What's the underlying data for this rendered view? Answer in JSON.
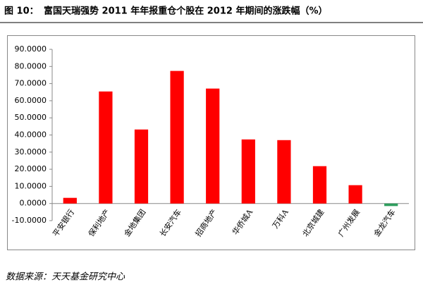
{
  "chart_data": {
    "type": "bar",
    "figure_label": "图 10：",
    "title": "富国天瑞强势 2011 年年报重仓个股在 2012 年期间的涨跌幅（%）",
    "source": "数据来源：天天基金研究中心",
    "categories": [
      "平安银行",
      "保利地产",
      "金地集团",
      "长安汽车",
      "招商地产",
      "华侨城A",
      "万科A",
      "北京城建",
      "广州发展",
      "金龙汽车"
    ],
    "values": [
      3.3,
      65.4,
      43.2,
      77.4,
      67.1,
      37.4,
      37.0,
      21.8,
      10.7,
      -1.5
    ],
    "colors": [
      "#ff0000",
      "#ff0000",
      "#ff0000",
      "#ff0000",
      "#ff0000",
      "#ff0000",
      "#ff0000",
      "#ff0000",
      "#ff0000",
      "#2e9e5e"
    ],
    "ylim": [
      -10,
      90
    ],
    "yticks": [
      {
        "value": -10,
        "label": "-10.0000"
      },
      {
        "value": 0,
        "label": "0.0000"
      },
      {
        "value": 10,
        "label": "10.0000"
      },
      {
        "value": 20,
        "label": "20.0000"
      },
      {
        "value": 30,
        "label": "30.0000"
      },
      {
        "value": 40,
        "label": "40.0000"
      },
      {
        "value": 50,
        "label": "50.0000"
      },
      {
        "value": 60,
        "label": "60.0000"
      },
      {
        "value": 70,
        "label": "70.0000"
      },
      {
        "value": 80,
        "label": "80.0000"
      },
      {
        "value": 90,
        "label": "90.0000"
      }
    ],
    "grid": false
  }
}
